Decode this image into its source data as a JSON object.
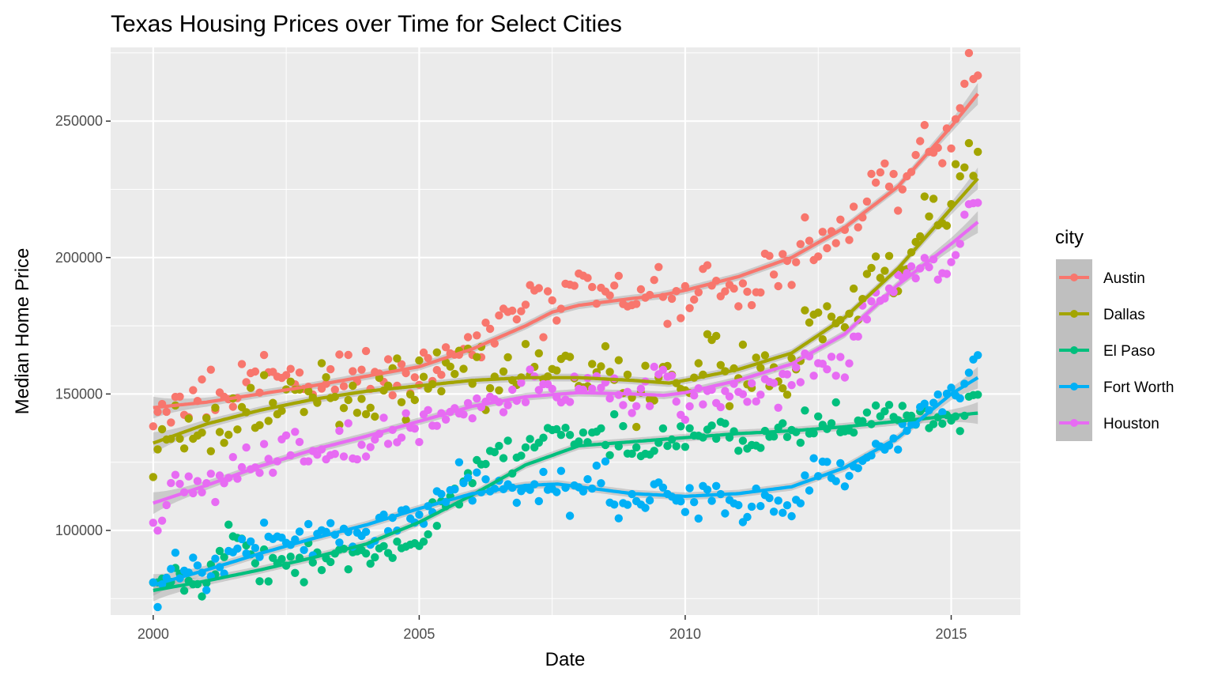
{
  "chart_data": {
    "type": "scatter",
    "title": "Texas Housing Prices over Time for Select Cities",
    "xlabel": "Date",
    "ylabel": "Median Home Price",
    "xlim": [
      1999.2,
      2016.3
    ],
    "ylim": [
      69000,
      277000
    ],
    "x_ticks": [
      2000,
      2005,
      2010,
      2015
    ],
    "x_tick_labels": [
      "2000",
      "2005",
      "2010",
      "2015"
    ],
    "y_ticks": [
      100000,
      150000,
      200000,
      250000
    ],
    "y_tick_labels": [
      "100000",
      "150000",
      "200000",
      "250000"
    ],
    "grid": true,
    "legend_title": "city",
    "legend_position": "right",
    "smoothing": "loess with confidence band",
    "series": [
      {
        "name": "Austin",
        "color": "#F8766D",
        "trend": [
          [
            2000,
            145000
          ],
          [
            2001,
            147000
          ],
          [
            2002,
            150000
          ],
          [
            2003,
            153000
          ],
          [
            2004,
            156500
          ],
          [
            2005,
            160000
          ],
          [
            2006,
            166500
          ],
          [
            2007,
            175000
          ],
          [
            2007.5,
            180000
          ],
          [
            2008,
            182500
          ],
          [
            2009,
            185000
          ],
          [
            2009.5,
            186000
          ],
          [
            2010,
            188000
          ],
          [
            2011,
            193000
          ],
          [
            2012,
            200000
          ],
          [
            2013,
            211000
          ],
          [
            2014,
            226000
          ],
          [
            2015,
            248000
          ],
          [
            2015.5,
            260000
          ]
        ],
        "anchors": [
          [
            2000,
            134000
          ],
          [
            2000.3,
            148000
          ],
          [
            2001,
            150000
          ],
          [
            2001.5,
            153000
          ],
          [
            2002,
            154000
          ],
          [
            2002.5,
            157000
          ],
          [
            2003,
            153000
          ],
          [
            2003.5,
            160000
          ],
          [
            2004,
            156000
          ],
          [
            2004.5,
            157000
          ],
          [
            2005,
            157000
          ],
          [
            2005.5,
            162000
          ],
          [
            2006,
            168000
          ],
          [
            2006.5,
            172000
          ],
          [
            2007,
            182000
          ],
          [
            2007.5,
            185000
          ],
          [
            2008,
            188000
          ],
          [
            2008.5,
            190000
          ],
          [
            2009,
            180000
          ],
          [
            2009.5,
            190000
          ],
          [
            2010,
            183000
          ],
          [
            2010.5,
            197000
          ],
          [
            2011,
            186000
          ],
          [
            2011.5,
            190000
          ],
          [
            2012,
            198000
          ],
          [
            2012.5,
            208000
          ],
          [
            2013,
            213000
          ],
          [
            2013.5,
            225000
          ],
          [
            2014,
            226000
          ],
          [
            2014.5,
            242000
          ],
          [
            2015,
            242000
          ],
          [
            2015.3,
            270000
          ],
          [
            2015.5,
            265000
          ]
        ],
        "noise": 5500
      },
      {
        "name": "Dallas",
        "color": "#A3A500",
        "trend": [
          [
            2000,
            132000
          ],
          [
            2001,
            139000
          ],
          [
            2002,
            144000
          ],
          [
            2003,
            148000
          ],
          [
            2004,
            151000
          ],
          [
            2005,
            153000
          ],
          [
            2006,
            155000
          ],
          [
            2007,
            156000
          ],
          [
            2008,
            156000
          ],
          [
            2009,
            155000
          ],
          [
            2009.7,
            154000
          ],
          [
            2010,
            155000
          ],
          [
            2011,
            159000
          ],
          [
            2012,
            165000
          ],
          [
            2013,
            178000
          ],
          [
            2014,
            196000
          ],
          [
            2015,
            218000
          ],
          [
            2015.5,
            229000
          ]
        ],
        "anchors": [
          [
            2000,
            125000
          ],
          [
            2000.3,
            136000
          ],
          [
            2001,
            137000
          ],
          [
            2001.5,
            143000
          ],
          [
            2002,
            144000
          ],
          [
            2002.5,
            146000
          ],
          [
            2003,
            146000
          ],
          [
            2003.5,
            150000
          ],
          [
            2004,
            145000
          ],
          [
            2004.5,
            153000
          ],
          [
            2005,
            150000
          ],
          [
            2005.5,
            158000
          ],
          [
            2006,
            160000
          ],
          [
            2006.5,
            156000
          ],
          [
            2007,
            164000
          ],
          [
            2007.5,
            160000
          ],
          [
            2008,
            156000
          ],
          [
            2008.5,
            162000
          ],
          [
            2009,
            150000
          ],
          [
            2009.5,
            160000
          ],
          [
            2010,
            150000
          ],
          [
            2010.5,
            165000
          ],
          [
            2011,
            155000
          ],
          [
            2011.5,
            162000
          ],
          [
            2012,
            158000
          ],
          [
            2012.5,
            176000
          ],
          [
            2013,
            180000
          ],
          [
            2013.5,
            196000
          ],
          [
            2014,
            190000
          ],
          [
            2014.5,
            215000
          ],
          [
            2015,
            220000
          ],
          [
            2015.3,
            240000
          ],
          [
            2015.5,
            233000
          ]
        ],
        "noise": 6500
      },
      {
        "name": "El Paso",
        "color": "#00BF7D",
        "trend": [
          [
            2000,
            78000
          ],
          [
            2001,
            81500
          ],
          [
            2002,
            85500
          ],
          [
            2003,
            90000
          ],
          [
            2004,
            95000
          ],
          [
            2005,
            103000
          ],
          [
            2006,
            113000
          ],
          [
            2007,
            124000
          ],
          [
            2008,
            131000
          ],
          [
            2009,
            132500
          ],
          [
            2010,
            134000
          ],
          [
            2011,
            135500
          ],
          [
            2012,
            136500
          ],
          [
            2013,
            138000
          ],
          [
            2014,
            140000
          ],
          [
            2015,
            142000
          ],
          [
            2015.5,
            143000
          ]
        ],
        "anchors": [
          [
            2000,
            82000
          ],
          [
            2001,
            80000
          ],
          [
            2001.5,
            99000
          ],
          [
            2002,
            85000
          ],
          [
            2002.5,
            90000
          ],
          [
            2003,
            88000
          ],
          [
            2003.5,
            90000
          ],
          [
            2004,
            92000
          ],
          [
            2004.5,
            92000
          ],
          [
            2005,
            98000
          ],
          [
            2005.5,
            110000
          ],
          [
            2006,
            122000
          ],
          [
            2006.5,
            128000
          ],
          [
            2007,
            130000
          ],
          [
            2007.5,
            136000
          ],
          [
            2008,
            134000
          ],
          [
            2008.5,
            136000
          ],
          [
            2009,
            130000
          ],
          [
            2009.5,
            132000
          ],
          [
            2010,
            134000
          ],
          [
            2010.5,
            135000
          ],
          [
            2011,
            133000
          ],
          [
            2011.5,
            135000
          ],
          [
            2012,
            136000
          ],
          [
            2012.5,
            138000
          ],
          [
            2013,
            140000
          ],
          [
            2013.5,
            142000
          ],
          [
            2014,
            142000
          ],
          [
            2014.5,
            142000
          ],
          [
            2015,
            140000
          ],
          [
            2015.5,
            148000
          ]
        ],
        "noise": 3600
      },
      {
        "name": "Fort Worth",
        "color": "#00B0F6",
        "trend": [
          [
            2000,
            80000
          ],
          [
            2001,
            85500
          ],
          [
            2002,
            91500
          ],
          [
            2003,
            97000
          ],
          [
            2004,
            102000
          ],
          [
            2005,
            108000
          ],
          [
            2006,
            113500
          ],
          [
            2007,
            116500
          ],
          [
            2007.6,
            117000
          ],
          [
            2008,
            116000
          ],
          [
            2009,
            113500
          ],
          [
            2010,
            112500
          ],
          [
            2011,
            113500
          ],
          [
            2012,
            116000
          ],
          [
            2013,
            123000
          ],
          [
            2014,
            134000
          ],
          [
            2015,
            150000
          ],
          [
            2015.5,
            156000
          ]
        ],
        "anchors": [
          [
            2000,
            78000
          ],
          [
            2000.5,
            88000
          ],
          [
            2001,
            86000
          ],
          [
            2001.5,
            92000
          ],
          [
            2002,
            95000
          ],
          [
            2002.5,
            97000
          ],
          [
            2003,
            98000
          ],
          [
            2003.5,
            102000
          ],
          [
            2004,
            96000
          ],
          [
            2004.5,
            104000
          ],
          [
            2005,
            104000
          ],
          [
            2005.5,
            114000
          ],
          [
            2006,
            118000
          ],
          [
            2006.5,
            117000
          ],
          [
            2007,
            116000
          ],
          [
            2007.5,
            118000
          ],
          [
            2008,
            114000
          ],
          [
            2008.5,
            118000
          ],
          [
            2009,
            108000
          ],
          [
            2009.5,
            116000
          ],
          [
            2010,
            110000
          ],
          [
            2010.5,
            114000
          ],
          [
            2011,
            108000
          ],
          [
            2011.5,
            112000
          ],
          [
            2012,
            108000
          ],
          [
            2012.5,
            120000
          ],
          [
            2013,
            120000
          ],
          [
            2013.5,
            128000
          ],
          [
            2014,
            130000
          ],
          [
            2014.5,
            145000
          ],
          [
            2015,
            150000
          ],
          [
            2015.5,
            160000
          ]
        ],
        "noise": 3800
      },
      {
        "name": "Houston",
        "color": "#E76BF3",
        "trend": [
          [
            2000,
            110000
          ],
          [
            2001,
            116500
          ],
          [
            2002,
            123500
          ],
          [
            2003,
            129500
          ],
          [
            2004,
            134500
          ],
          [
            2005,
            140000
          ],
          [
            2006,
            145500
          ],
          [
            2007,
            149000
          ],
          [
            2008,
            150500
          ],
          [
            2009,
            150000
          ],
          [
            2009.6,
            149500
          ],
          [
            2010,
            150500
          ],
          [
            2011,
            155000
          ],
          [
            2012,
            161000
          ],
          [
            2013,
            172000
          ],
          [
            2014,
            190000
          ],
          [
            2015,
            205000
          ],
          [
            2015.5,
            213000
          ]
        ],
        "anchors": [
          [
            2000,
            103000
          ],
          [
            2000.5,
            116000
          ],
          [
            2001,
            116000
          ],
          [
            2001.5,
            123000
          ],
          [
            2002,
            122000
          ],
          [
            2002.5,
            130000
          ],
          [
            2003,
            127000
          ],
          [
            2003.5,
            133000
          ],
          [
            2004,
            130000
          ],
          [
            2004.5,
            136000
          ],
          [
            2005,
            137000
          ],
          [
            2005.5,
            144000
          ],
          [
            2006,
            143000
          ],
          [
            2006.5,
            148000
          ],
          [
            2007,
            152000
          ],
          [
            2007.5,
            150000
          ],
          [
            2008,
            152000
          ],
          [
            2008.5,
            156000
          ],
          [
            2009,
            145000
          ],
          [
            2009.5,
            160000
          ],
          [
            2010,
            146000
          ],
          [
            2010.5,
            154000
          ],
          [
            2011,
            150000
          ],
          [
            2011.5,
            156000
          ],
          [
            2012,
            155000
          ],
          [
            2012.5,
            164000
          ],
          [
            2013,
            160000
          ],
          [
            2013.5,
            185000
          ],
          [
            2014,
            190000
          ],
          [
            2014.5,
            200000
          ],
          [
            2015,
            196000
          ],
          [
            2015.3,
            220000
          ],
          [
            2015.5,
            218000
          ]
        ],
        "noise": 4500
      }
    ]
  }
}
